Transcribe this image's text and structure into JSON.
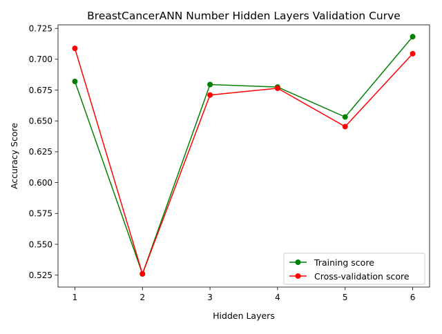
{
  "chart_data": {
    "type": "line",
    "title": "BreastCancerANN Number Hidden Layers Validation Curve",
    "xlabel": "Hidden Layers",
    "ylabel": "Accuracy Score",
    "x": [
      1,
      2,
      3,
      4,
      5,
      6
    ],
    "xlim": [
      0.75,
      6.25
    ],
    "ylim": [
      0.5153,
      0.7279
    ],
    "xticks": [
      1,
      2,
      3,
      4,
      5,
      6
    ],
    "yticks": [
      0.525,
      0.55,
      0.575,
      0.6,
      0.625,
      0.65,
      0.675,
      0.7,
      0.725
    ],
    "ytick_labels": [
      "0.525",
      "0.550",
      "0.575",
      "0.600",
      "0.625",
      "0.650",
      "0.675",
      "0.700",
      "0.725"
    ],
    "grid": false,
    "legend_position": "lower-right",
    "series": [
      {
        "name": "Training score",
        "color": "#008000",
        "marker": "circle",
        "values": [
          0.682,
          0.526,
          0.6795,
          0.6775,
          0.6532,
          0.7183
        ]
      },
      {
        "name": "Cross-validation score",
        "color": "#ff0000",
        "marker": "circle",
        "values": [
          0.7088,
          0.526,
          0.671,
          0.6765,
          0.6454,
          0.7045
        ]
      }
    ]
  }
}
